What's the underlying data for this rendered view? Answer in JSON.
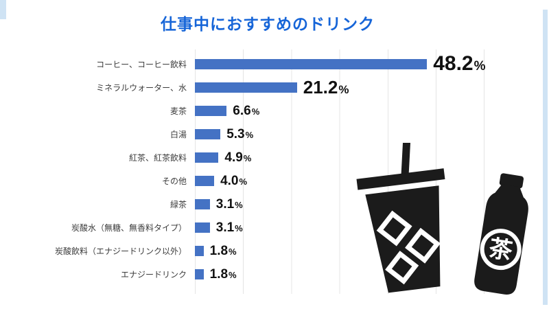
{
  "chart_data": {
    "type": "bar",
    "orientation": "horizontal",
    "title": "仕事中におすすめのドリンク",
    "categories": [
      "コーヒー、コーヒー飲料",
      "ミネラルウォーター、水",
      "麦茶",
      "白湯",
      "紅茶、紅茶飲料",
      "その他",
      "緑茶",
      "炭酸水（無糖、無香料タイプ）",
      "炭酸飲料（エナジードリンク以外）",
      "エナジードリンク"
    ],
    "values": [
      48.2,
      21.2,
      6.6,
      5.3,
      4.9,
      4.0,
      3.1,
      3.1,
      1.8,
      1.8
    ],
    "value_labels": [
      "48.2",
      "21.2",
      "6.6",
      "5.3",
      "4.9",
      "4.0",
      "3.1",
      "3.1",
      "1.8",
      "1.8"
    ],
    "unit": "%",
    "xlim": [
      0,
      60
    ],
    "gridline_interval": 10,
    "grid": true,
    "legend": "none",
    "bar_color": "#4472c4",
    "title_color": "#1665d8"
  },
  "decor": {
    "accent_color": "#cfe3f4",
    "icons": [
      "iced-coffee-cup-icon",
      "tea-bottle-icon"
    ],
    "tea_bottle_character": "茶"
  }
}
